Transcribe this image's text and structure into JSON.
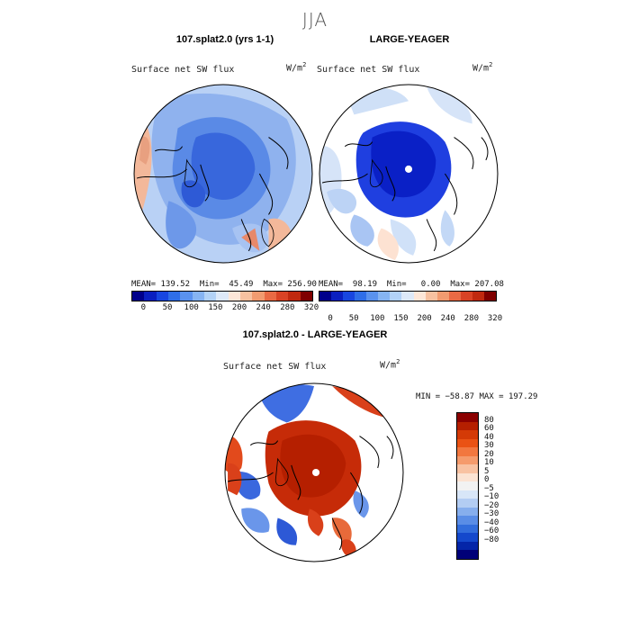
{
  "season": "JJA",
  "panels": [
    {
      "title": "107.splat2.0 (yrs 1-1)",
      "variable": "Surface net SW flux",
      "units_base": "W/m",
      "units_exp": "2",
      "stats_mean": "MEAN= 139.52",
      "stats_min": "Min=  45.49",
      "stats_max": "Max= 256.90"
    },
    {
      "title": "LARGE-YEAGER",
      "variable": "Surface net SW flux",
      "units_base": "W/m",
      "units_exp": "2",
      "stats_mean": "MEAN=  98.19",
      "stats_min": "Min=   0.00",
      "stats_max": "Max= 207.08"
    }
  ],
  "abs_colorbar": {
    "labels": [
      "0",
      "50",
      "100",
      "150",
      "200",
      "240",
      "280",
      "320"
    ],
    "colors": [
      "#00008b",
      "#0a1fc0",
      "#1846e0",
      "#2f6ee8",
      "#5a92ee",
      "#86b4f2",
      "#b2d2f6",
      "#dde9f8",
      "#fde7d8",
      "#f7c1a0",
      "#f19b70",
      "#e96a44",
      "#d94325",
      "#c0290f",
      "#7f0000"
    ]
  },
  "diff_panel": {
    "title": "107.splat2.0 - LARGE-YEAGER",
    "variable": "Surface net SW flux",
    "units_base": "W/m",
    "units_exp": "2",
    "stats": "MIN = −58.87 MAX = 197.29"
  },
  "diff_colorbar": {
    "labels": [
      "80",
      "60",
      "40",
      "30",
      "20",
      "10",
      "5",
      "0",
      "−5",
      "−10",
      "−20",
      "−30",
      "−40",
      "−60",
      "−80"
    ],
    "colors": [
      "#8b0000",
      "#b51f00",
      "#d43a06",
      "#ea5214",
      "#f2773f",
      "#f59b6c",
      "#f8c2a2",
      "#fbe3d3",
      "#f2f2f2",
      "#d8e6f8",
      "#b3cdf3",
      "#86aeed",
      "#5a8de6",
      "#326ddc",
      "#1448cc",
      "#0425a8",
      "#000078"
    ]
  }
}
